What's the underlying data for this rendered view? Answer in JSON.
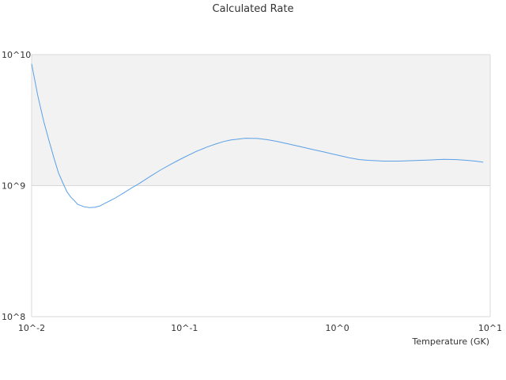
{
  "chart_data": {
    "type": "line",
    "title": "Calculated Rate",
    "xlabel": "Temperature (GK)",
    "ylabel": "",
    "x_scale": "log",
    "y_scale": "log",
    "xlim": [
      0.01,
      10
    ],
    "ylim": [
      100000000,
      10000000000
    ],
    "x_ticks": [
      {
        "value": 0.01,
        "label": "10^-2"
      },
      {
        "value": 0.1,
        "label": "10^-1"
      },
      {
        "value": 1,
        "label": "10^0"
      },
      {
        "value": 10,
        "label": "10^1"
      }
    ],
    "y_ticks": [
      {
        "value": 100000000,
        "label": "10^8"
      },
      {
        "value": 1000000000,
        "label": "10^9"
      },
      {
        "value": 10000000000,
        "label": "10^10"
      }
    ],
    "grid": true,
    "legend": "none",
    "band": {
      "from": 1000000000,
      "to": 10000000000,
      "color": "#f2f2f2"
    },
    "series": [
      {
        "color": "#5aa0e6",
        "x": [
          0.01,
          0.011,
          0.012,
          0.013,
          0.014,
          0.015,
          0.016,
          0.017,
          0.018,
          0.019,
          0.02,
          0.022,
          0.024,
          0.026,
          0.028,
          0.03,
          0.035,
          0.04,
          0.045,
          0.05,
          0.06,
          0.07,
          0.08,
          0.09,
          0.1,
          0.12,
          0.14,
          0.16,
          0.18,
          0.2,
          0.25,
          0.3,
          0.35,
          0.4,
          0.5,
          0.6,
          0.7,
          0.8,
          0.9,
          1.0,
          1.2,
          1.4,
          1.6,
          1.8,
          2.0,
          2.5,
          3.0,
          3.5,
          4.0,
          4.5,
          5.0,
          6.0,
          7.0,
          8.0,
          9.0
        ],
        "y": [
          8500000000,
          4800000000,
          3100000000,
          2200000000,
          1620000000,
          1250000000,
          1050000000,
          900000000,
          820000000,
          770000000,
          720000000,
          690000000,
          680000000,
          685000000,
          700000000,
          730000000,
          800000000,
          880000000,
          960000000,
          1030000000,
          1180000000,
          1320000000,
          1440000000,
          1550000000,
          1650000000,
          1830000000,
          1970000000,
          2080000000,
          2170000000,
          2230000000,
          2300000000,
          2290000000,
          2240000000,
          2180000000,
          2060000000,
          1960000000,
          1880000000,
          1820000000,
          1760000000,
          1710000000,
          1630000000,
          1580000000,
          1560000000,
          1550000000,
          1540000000,
          1540000000,
          1550000000,
          1560000000,
          1570000000,
          1580000000,
          1590000000,
          1580000000,
          1560000000,
          1540000000,
          1510000000
        ]
      }
    ]
  }
}
